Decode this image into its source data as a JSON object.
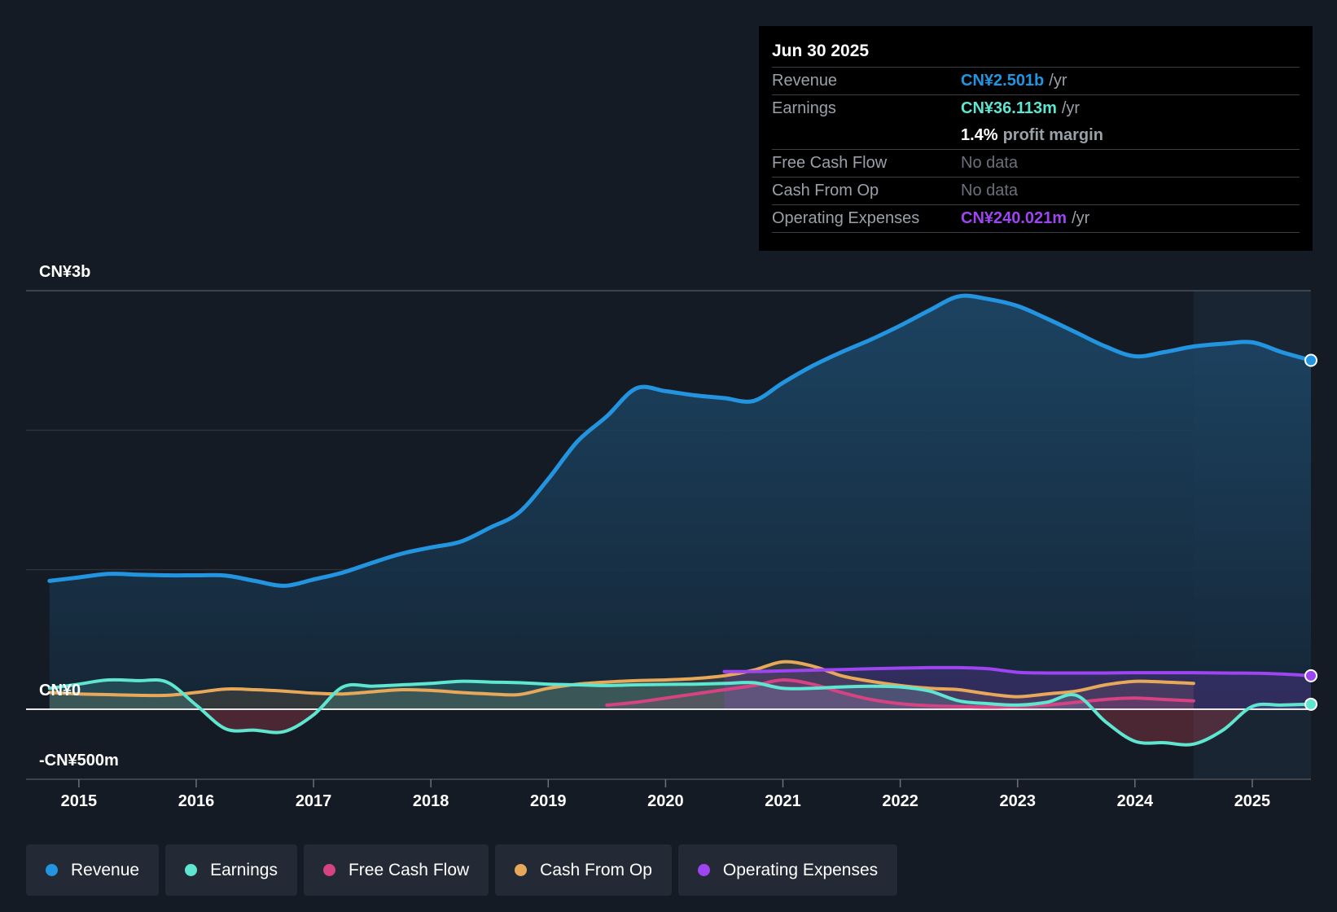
{
  "tooltip": {
    "date": "Jun 30 2025",
    "rows": {
      "revenue": {
        "label": "Revenue",
        "value": "CN¥2.501b",
        "unit": "/yr"
      },
      "earnings": {
        "label": "Earnings",
        "value": "CN¥36.113m",
        "unit": "/yr"
      },
      "margin": {
        "value": "1.4%",
        "unit": "profit margin"
      },
      "fcf": {
        "label": "Free Cash Flow",
        "value": "No data"
      },
      "cfo": {
        "label": "Cash From Op",
        "value": "No data"
      },
      "opex": {
        "label": "Operating Expenses",
        "value": "CN¥240.021m",
        "unit": "/yr"
      }
    }
  },
  "colors": {
    "revenue": "#2394df",
    "earnings": "#5ee6d0",
    "fcf": "#d64382",
    "cfo": "#e8a85a",
    "opex": "#9d45f0",
    "background": "#151b24"
  },
  "legend": [
    {
      "key": "revenue",
      "label": "Revenue"
    },
    {
      "key": "earnings",
      "label": "Earnings"
    },
    {
      "key": "fcf",
      "label": "Free Cash Flow"
    },
    {
      "key": "cfo",
      "label": "Cash From Op"
    },
    {
      "key": "opex",
      "label": "Operating Expenses"
    }
  ],
  "chart_data": {
    "type": "line",
    "y_tick_labels": {
      "top": "CN¥3b",
      "zero": "CN¥0",
      "bottom": "-CN¥500m"
    },
    "ylim": [
      -500,
      3000
    ],
    "xlim": [
      2014.55,
      2025.5
    ],
    "forecast_start": 2024.5,
    "x_ticks": [
      2015,
      2016,
      2017,
      2018,
      2019,
      2020,
      2021,
      2022,
      2023,
      2024,
      2025
    ],
    "series": [
      {
        "key": "revenue",
        "name": "Revenue",
        "area": true,
        "x": [
          2014.75,
          2015.0,
          2015.25,
          2015.5,
          2015.75,
          2016.0,
          2016.25,
          2016.5,
          2016.75,
          2017.0,
          2017.25,
          2017.5,
          2017.75,
          2018.0,
          2018.25,
          2018.5,
          2018.75,
          2019.0,
          2019.25,
          2019.5,
          2019.75,
          2020.0,
          2020.25,
          2020.5,
          2020.75,
          2021.0,
          2021.25,
          2021.5,
          2021.75,
          2022.0,
          2022.25,
          2022.5,
          2022.75,
          2023.0,
          2023.25,
          2023.5,
          2023.75,
          2024.0,
          2024.25,
          2024.5,
          2024.75,
          2025.0,
          2025.25,
          2025.5
        ],
        "values": [
          920,
          945,
          970,
          965,
          960,
          960,
          958,
          920,
          885,
          930,
          980,
          1050,
          1115,
          1160,
          1200,
          1300,
          1410,
          1650,
          1920,
          2100,
          2300,
          2280,
          2250,
          2230,
          2210,
          2340,
          2460,
          2560,
          2650,
          2750,
          2860,
          2960,
          2940,
          2890,
          2800,
          2700,
          2600,
          2530,
          2560,
          2600,
          2620,
          2630,
          2560,
          2501
        ]
      },
      {
        "key": "earnings",
        "name": "Earnings",
        "area": true,
        "x": [
          2014.75,
          2015.0,
          2015.25,
          2015.5,
          2015.75,
          2016.0,
          2016.25,
          2016.5,
          2016.75,
          2017.0,
          2017.25,
          2017.5,
          2017.75,
          2018.0,
          2018.25,
          2018.5,
          2018.75,
          2019.0,
          2019.25,
          2019.5,
          2019.75,
          2020.0,
          2020.25,
          2020.5,
          2020.75,
          2021.0,
          2021.25,
          2021.5,
          2021.75,
          2022.0,
          2022.25,
          2022.5,
          2022.75,
          2023.0,
          2023.25,
          2023.5,
          2023.75,
          2024.0,
          2024.25,
          2024.5,
          2024.75,
          2025.0,
          2025.25,
          2025.5
        ],
        "values": [
          150,
          180,
          210,
          205,
          195,
          30,
          -140,
          -150,
          -160,
          -40,
          160,
          165,
          175,
          185,
          200,
          195,
          190,
          180,
          175,
          170,
          175,
          178,
          180,
          185,
          190,
          150,
          150,
          160,
          165,
          160,
          130,
          60,
          40,
          30,
          50,
          100,
          -90,
          -230,
          -240,
          -250,
          -150,
          20,
          30,
          36
        ]
      },
      {
        "key": "fcf",
        "name": "Free Cash Flow",
        "area": true,
        "x": [
          2019.5,
          2019.75,
          2020.0,
          2020.25,
          2020.5,
          2020.75,
          2021.0,
          2021.25,
          2021.5,
          2021.75,
          2022.0,
          2022.25,
          2022.5,
          2022.75,
          2023.0,
          2023.25,
          2023.5,
          2023.75,
          2024.0,
          2024.25,
          2024.5
        ],
        "values": [
          30,
          50,
          80,
          110,
          140,
          170,
          210,
          180,
          120,
          70,
          40,
          25,
          20,
          15,
          20,
          30,
          50,
          70,
          80,
          70,
          60
        ]
      },
      {
        "key": "cfo",
        "name": "Cash From Op",
        "area": true,
        "x": [
          2014.75,
          2015.0,
          2015.25,
          2015.5,
          2015.75,
          2016.0,
          2016.25,
          2016.5,
          2016.75,
          2017.0,
          2017.25,
          2017.5,
          2017.75,
          2018.0,
          2018.25,
          2018.5,
          2018.75,
          2019.0,
          2019.25,
          2019.5,
          2019.75,
          2020.0,
          2020.25,
          2020.5,
          2020.75,
          2021.0,
          2021.25,
          2021.5,
          2021.75,
          2022.0,
          2022.25,
          2022.5,
          2022.75,
          2023.0,
          2023.25,
          2023.5,
          2023.75,
          2024.0,
          2024.25,
          2024.5
        ],
        "values": [
          120,
          110,
          105,
          100,
          100,
          120,
          145,
          140,
          130,
          115,
          110,
          125,
          140,
          135,
          120,
          110,
          105,
          150,
          180,
          195,
          205,
          210,
          220,
          240,
          280,
          340,
          310,
          240,
          200,
          170,
          150,
          140,
          110,
          90,
          110,
          130,
          175,
          200,
          195,
          185
        ]
      },
      {
        "key": "opex",
        "name": "Operating Expenses",
        "area": true,
        "x": [
          2020.5,
          2020.75,
          2021.0,
          2021.25,
          2021.5,
          2021.75,
          2022.0,
          2022.25,
          2022.5,
          2022.75,
          2023.0,
          2023.25,
          2023.5,
          2023.75,
          2024.0,
          2024.25,
          2024.5,
          2024.75,
          2025.0,
          2025.25,
          2025.5
        ],
        "values": [
          270,
          270,
          275,
          280,
          285,
          290,
          295,
          298,
          298,
          290,
          265,
          260,
          260,
          260,
          262,
          262,
          262,
          260,
          258,
          252,
          240
        ]
      }
    ]
  }
}
